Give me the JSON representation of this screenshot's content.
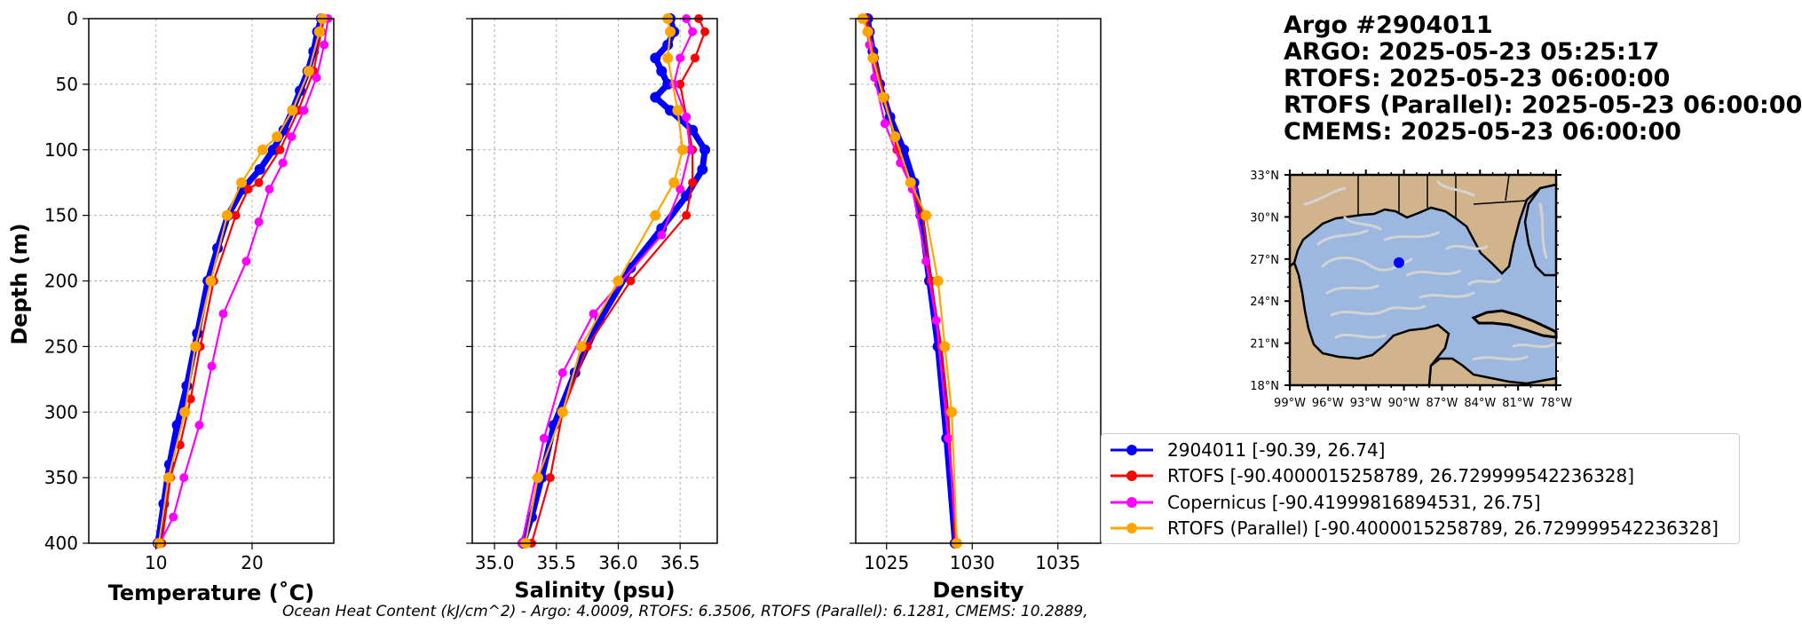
{
  "colors": {
    "argo": "#0000ff",
    "rtofs": "#ff0000",
    "copernicus": "#ff00ff",
    "rtofs_parallel": "#ffa500",
    "map_land": "#d2b48c",
    "map_ocean": "#9cb7e0",
    "map_streamlines": "#d3d3d3",
    "grid": "#b0b0b0"
  },
  "title_lines": [
    "Argo #2904011",
    "ARGO:  2025-05-23 05:25:17",
    "RTOFS: 2025-05-23 06:00:00",
    "RTOFS (Parallel): 2025-05-23 06:00:00",
    "CMEMS: 2025-05-23 06:00:00"
  ],
  "legend": [
    {
      "label": "2904011 [-90.39, 26.74]",
      "series": "argo"
    },
    {
      "label": "RTOFS [-90.4000015258789, 26.729999542236328]",
      "series": "rtofs"
    },
    {
      "label": "Copernicus [-90.41999816894531, 26.75]",
      "series": "copernicus"
    },
    {
      "label": "RTOFS (Parallel) [-90.4000015258789, 26.729999542236328]",
      "series": "rtofs_parallel"
    }
  ],
  "footer": "Ocean Heat Content (kJ/cm^2) - Argo: 4.0009,  RTOFS: 6.3506,  RTOFS (Parallel): 6.1281,  CMEMS: 10.2889,",
  "map": {
    "xticks": [
      "99°W",
      "96°W",
      "93°W",
      "90°W",
      "87°W",
      "84°W",
      "81°W",
      "78°W"
    ],
    "yticks": [
      "33°N",
      "30°N",
      "27°N",
      "24°N",
      "21°N",
      "18°N"
    ],
    "xlim": [
      -99,
      -78
    ],
    "ylim": [
      18,
      33
    ],
    "marker": {
      "lon": -90.39,
      "lat": 26.74
    }
  },
  "chart_data": [
    {
      "type": "line",
      "xlabel": "Temperature (˚C)",
      "ylabel": "Depth (m)",
      "xlim": [
        3,
        28.5
      ],
      "ylim": [
        400,
        0
      ],
      "xticks": [
        10,
        20
      ],
      "yticks": [
        0,
        50,
        100,
        150,
        200,
        250,
        300,
        350,
        400
      ],
      "grid": true,
      "series": [
        {
          "name": "argo",
          "x": [
            27.2,
            26.8,
            26.4,
            25.8,
            25.0,
            24.2,
            23.3,
            22.2,
            20.8,
            19.0,
            17.5,
            16.4,
            15.4,
            14.3,
            13.2,
            12.2,
            11.4,
            10.8,
            10.2
          ],
          "y": [
            0,
            10,
            25,
            40,
            55,
            70,
            85,
            100,
            115,
            130,
            150,
            175,
            200,
            240,
            280,
            310,
            340,
            370,
            400
          ]
        },
        {
          "name": "rtofs",
          "x": [
            27.5,
            27.2,
            26.4,
            24.8,
            22.9,
            20.7,
            19.6,
            18.3,
            16.0,
            14.6,
            13.6,
            12.5,
            11.5,
            10.6
          ],
          "y": [
            0,
            10,
            40,
            70,
            100,
            125,
            130,
            150,
            200,
            250,
            290,
            325,
            350,
            400
          ]
        },
        {
          "name": "copernicus",
          "x": [
            27.9,
            27.5,
            26.7,
            25.4,
            24.1,
            23.2,
            21.8,
            20.7,
            19.4,
            17.0,
            15.8,
            14.5,
            12.9,
            11.8,
            10.4
          ],
          "y": [
            0,
            20,
            45,
            70,
            90,
            110,
            130,
            155,
            185,
            225,
            265,
            310,
            350,
            380,
            400
          ]
        },
        {
          "name": "rtofs_parallel",
          "x": [
            27.3,
            27.0,
            25.9,
            24.2,
            22.6,
            21.1,
            18.9,
            17.4,
            15.7,
            14.1,
            13.0,
            11.3,
            10.3
          ],
          "y": [
            0,
            10,
            40,
            70,
            90,
            100,
            125,
            150,
            200,
            250,
            300,
            350,
            400
          ]
        }
      ]
    },
    {
      "type": "line",
      "xlabel": "Salinity (psu)",
      "xlim": [
        34.82,
        36.8
      ],
      "ylim": [
        400,
        0
      ],
      "xticks": [
        35.0,
        35.5,
        36.0,
        36.5
      ],
      "yticks": [
        0,
        50,
        100,
        150,
        200,
        250,
        300,
        350,
        400
      ],
      "grid": true,
      "series": [
        {
          "name": "argo",
          "x": [
            36.42,
            36.45,
            36.4,
            36.3,
            36.35,
            36.4,
            36.3,
            36.42,
            36.6,
            36.7,
            36.68,
            36.55,
            36.35,
            36.1,
            35.85,
            35.65,
            35.48,
            35.38,
            35.3,
            35.23
          ],
          "y": [
            0,
            10,
            20,
            30,
            40,
            50,
            60,
            70,
            85,
            100,
            115,
            135,
            160,
            190,
            230,
            270,
            310,
            350,
            380,
            400
          ]
        },
        {
          "name": "rtofs",
          "x": [
            36.65,
            36.7,
            36.62,
            36.5,
            36.55,
            36.6,
            36.6,
            36.55,
            36.1,
            35.75,
            35.55,
            35.45,
            35.3
          ],
          "y": [
            0,
            10,
            30,
            50,
            75,
            100,
            125,
            150,
            200,
            250,
            300,
            350,
            400
          ]
        },
        {
          "name": "copernicus",
          "x": [
            36.55,
            36.6,
            36.5,
            36.45,
            36.55,
            36.58,
            36.5,
            36.35,
            35.8,
            35.55,
            35.4,
            35.22
          ],
          "y": [
            0,
            10,
            30,
            50,
            75,
            100,
            130,
            165,
            225,
            270,
            320,
            400
          ]
        },
        {
          "name": "rtofs_parallel",
          "x": [
            36.4,
            36.42,
            36.4,
            36.48,
            36.52,
            36.45,
            36.3,
            36.0,
            35.7,
            35.55,
            35.35,
            35.25
          ],
          "y": [
            0,
            10,
            30,
            70,
            100,
            125,
            150,
            200,
            250,
            300,
            350,
            400
          ]
        }
      ]
    },
    {
      "type": "line",
      "xlabel": "Density",
      "xlim": [
        1023.2,
        1037.5
      ],
      "ylim": [
        400,
        0
      ],
      "xticks": [
        1025,
        1030,
        1035
      ],
      "yticks": [
        0,
        50,
        100,
        150,
        200,
        250,
        300,
        350,
        400
      ],
      "grid": true,
      "series": [
        {
          "name": "argo",
          "x": [
            1023.9,
            1024.0,
            1024.2,
            1024.6,
            1025.2,
            1026.0,
            1026.6,
            1027.0,
            1027.5,
            1028.0,
            1028.5,
            1029.0
          ],
          "y": [
            0,
            10,
            25,
            50,
            75,
            100,
            125,
            150,
            200,
            250,
            320,
            400
          ]
        },
        {
          "name": "rtofs",
          "x": [
            1023.8,
            1024.0,
            1024.3,
            1024.9,
            1025.6,
            1026.4,
            1027.1,
            1027.6,
            1028.2,
            1028.6,
            1029.0
          ],
          "y": [
            0,
            10,
            30,
            60,
            100,
            125,
            150,
            200,
            250,
            300,
            400
          ]
        },
        {
          "name": "copernicus",
          "x": [
            1023.7,
            1024.0,
            1024.3,
            1024.9,
            1025.8,
            1026.5,
            1027.3,
            1027.9,
            1028.6,
            1029.1
          ],
          "y": [
            0,
            20,
            45,
            80,
            110,
            130,
            185,
            230,
            320,
            400
          ]
        },
        {
          "name": "rtofs_parallel",
          "x": [
            1023.6,
            1023.9,
            1024.2,
            1024.8,
            1025.5,
            1026.4,
            1027.3,
            1028.0,
            1028.4,
            1028.8,
            1029.1
          ],
          "y": [
            0,
            10,
            30,
            60,
            90,
            125,
            150,
            200,
            250,
            300,
            400
          ]
        }
      ]
    }
  ]
}
